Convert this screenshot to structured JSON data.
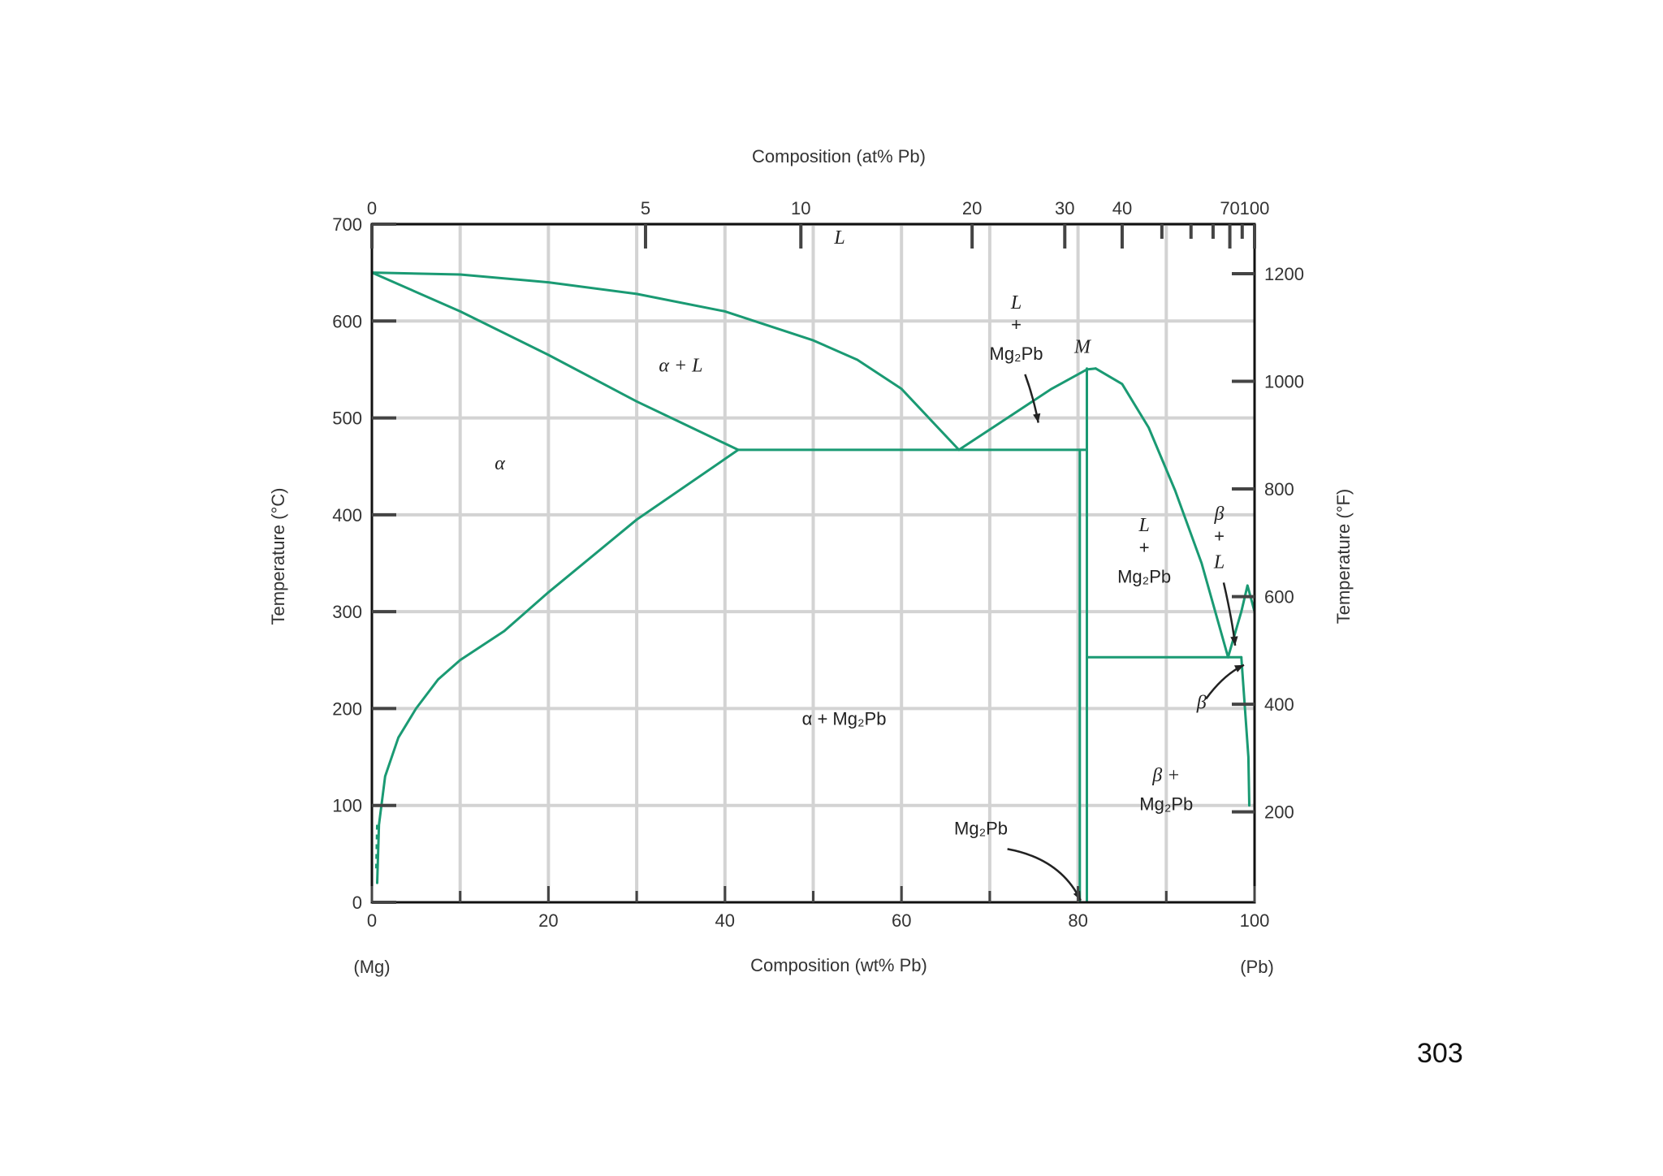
{
  "chart_data": {
    "type": "line",
    "title": "",
    "xlabel": "Composition (wt% Pb)",
    "xlabel_top": "Composition (at% Pb)",
    "ylabel_left": "Temperature (°C)",
    "ylabel_right": "Temperature (°F)",
    "end_labels": {
      "left": "(Mg)",
      "right": "(Pb)"
    },
    "xlim": [
      0,
      100
    ],
    "ylim": [
      0,
      700
    ],
    "x_ticks": [
      0,
      20,
      40,
      60,
      80,
      100
    ],
    "y_ticks": [
      0,
      100,
      200,
      300,
      400,
      500,
      600,
      700
    ],
    "top_ticks": [
      {
        "label": "0",
        "wt": 0
      },
      {
        "label": "5",
        "wt": 31
      },
      {
        "label": "10",
        "wt": 48.6
      },
      {
        "label": "20",
        "wt": 68
      },
      {
        "label": "30",
        "wt": 78.5
      },
      {
        "label": "40",
        "wt": 85
      },
      {
        "label": "",
        "wt": 89.5
      },
      {
        "label": "",
        "wt": 92.8
      },
      {
        "label": "",
        "wt": 95.3
      },
      {
        "label": "70",
        "wt": 97.2
      },
      {
        "label": "",
        "wt": 98.6
      },
      {
        "label": "100",
        "wt": 100
      }
    ],
    "right_ticks_F": [
      200,
      400,
      600,
      800,
      1000,
      1200
    ],
    "grid": true,
    "line_color": "#1a9a73",
    "series": [
      {
        "x": [
          0,
          10,
          20,
          30,
          40,
          50,
          55,
          60,
          66.5
        ],
        "y": [
          650,
          648,
          640,
          628,
          610,
          580,
          560,
          530,
          467
        ]
      },
      {
        "x": [
          0,
          10,
          20,
          30,
          41.5
        ],
        "y": [
          650,
          610,
          565,
          517,
          467
        ]
      },
      {
        "x": [
          0.6,
          0.8,
          1.5,
          3,
          5,
          7.5,
          10,
          15,
          20,
          30,
          41.5
        ],
        "y": [
          20,
          80,
          130,
          170,
          200,
          230,
          250,
          280,
          320,
          395,
          467
        ]
      },
      {
        "x": [
          41.5,
          81
        ],
        "y": [
          467,
          467
        ]
      },
      {
        "x": [
          66.5,
          72,
          77,
          81,
          82
        ],
        "y": [
          467,
          500,
          530,
          550,
          551
        ]
      },
      {
        "x": [
          81,
          81
        ],
        "y": [
          551,
          0
        ]
      },
      {
        "x": [
          80.2,
          80.2
        ],
        "y": [
          467,
          0
        ]
      },
      {
        "x": [
          82,
          85,
          88,
          91,
          94,
          97
        ],
        "y": [
          551,
          535,
          490,
          425,
          350,
          253
        ]
      },
      {
        "x": [
          81,
          98.5
        ],
        "y": [
          253,
          253
        ]
      },
      {
        "x": [
          97,
          98.5,
          99.2,
          100
        ],
        "y": [
          253,
          300,
          327,
          300
        ]
      },
      {
        "x": [
          98.5,
          99.3,
          99.4
        ],
        "y": [
          253,
          150,
          100
        ]
      }
    ],
    "labels": [
      {
        "text": "L",
        "x": 53,
        "y": 680,
        "style": "italic"
      },
      {
        "text": "α + L",
        "x": 35,
        "y": 548,
        "style": "italic"
      },
      {
        "text": "α",
        "x": 14.5,
        "y": 447,
        "style": "italic"
      },
      {
        "text": "α + Mg₂Pb",
        "x": 53.5,
        "y": 183
      },
      {
        "text": "L",
        "x": 73,
        "y": 613,
        "style": "italic"
      },
      {
        "text": "+",
        "x": 73,
        "y": 590
      },
      {
        "text": "Mg₂Pb",
        "x": 73,
        "y": 560
      },
      {
        "text": "M",
        "x": 80.5,
        "y": 567,
        "style": "italic"
      },
      {
        "text": "L",
        "x": 87.5,
        "y": 383,
        "style": "italic"
      },
      {
        "text": "+",
        "x": 87.5,
        "y": 360
      },
      {
        "text": "Mg₂Pb",
        "x": 87.5,
        "y": 330
      },
      {
        "text": "β",
        "x": 96,
        "y": 395,
        "style": "italic"
      },
      {
        "text": "+",
        "x": 96,
        "y": 372
      },
      {
        "text": "L",
        "x": 96,
        "y": 345,
        "style": "italic"
      },
      {
        "text": "β",
        "x": 94,
        "y": 200,
        "style": "italic"
      },
      {
        "text": "β +",
        "x": 90,
        "y": 125,
        "style": "italic"
      },
      {
        "text": "Mg₂Pb",
        "x": 90,
        "y": 95
      },
      {
        "text": "Mg₂Pb",
        "x": 69,
        "y": 70
      }
    ]
  },
  "page_number": "303"
}
